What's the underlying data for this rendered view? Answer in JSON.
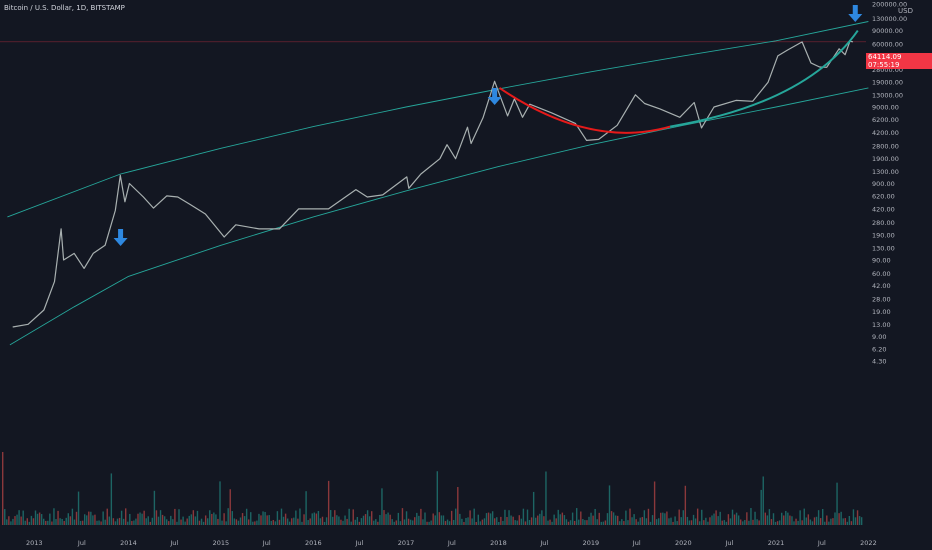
{
  "header": {
    "symbol_title": "Bitcoin / U.S. Dollar, 1D, BITSTAMP",
    "currency": "USD"
  },
  "last_price": {
    "value": "64114.09",
    "countdown": "07:55:19",
    "color": "#f23645"
  },
  "colors": {
    "background": "#131722",
    "channel_line": "#26a69a",
    "red_curve": "#e51a1a",
    "green_curve": "#26a69a",
    "arrows": "#2e88e0",
    "volume_up": "#26a69a",
    "volume_down": "#ef5350",
    "volume_ma": "#f0a050"
  },
  "chart_data": {
    "type": "line",
    "title": "Bitcoin / U.S. Dollar, 1D, BITSTAMP",
    "xlabel": "",
    "ylabel": "USD",
    "y_scale": "log",
    "ylim": [
      4.3,
      200000
    ],
    "y_tick_labels": [
      "200000.00",
      "130000.00",
      "90000.00",
      "60000.00",
      "42000.00",
      "28000.00",
      "19000.00",
      "13000.00",
      "9000.00",
      "6200.00",
      "4200.00",
      "2800.00",
      "1900.00",
      "1300.00",
      "900.00",
      "620.00",
      "420.00",
      "280.00",
      "190.00",
      "130.00",
      "90.00",
      "60.00",
      "42.00",
      "28.00",
      "19.00",
      "13.00",
      "9.00",
      "6.20",
      "4.30"
    ],
    "x_tick_labels": [
      "2013",
      "Jul",
      "2014",
      "Jul",
      "2015",
      "Jul",
      "2016",
      "Jul",
      "2017",
      "Jul",
      "2018",
      "Jul",
      "2019",
      "Jul",
      "2020",
      "Jul",
      "2021",
      "Jul",
      "2022"
    ],
    "series": [
      {
        "x": [
          "2012-10-01",
          "2012-12-01",
          "2013-02-01",
          "2013-03-15",
          "2013-04-10",
          "2013-04-20",
          "2013-06-01",
          "2013-07-10",
          "2013-08-15",
          "2013-10-01",
          "2013-11-10",
          "2013-11-30",
          "2013-12-18",
          "2014-01-05",
          "2014-03-01",
          "2014-04-10",
          "2014-06-01",
          "2014-07-15",
          "2014-09-01",
          "2014-11-01",
          "2015-01-14",
          "2015-03-01",
          "2015-06-01",
          "2015-08-20",
          "2015-11-04",
          "2016-01-01",
          "2016-03-01",
          "2016-06-17",
          "2016-08-01",
          "2016-10-01",
          "2017-01-04",
          "2017-01-12",
          "2017-03-01",
          "2017-05-15",
          "2017-06-12",
          "2017-07-16",
          "2017-09-01",
          "2017-09-15",
          "2017-11-01",
          "2017-12-17",
          "2018-02-06",
          "2018-03-05",
          "2018-04-06",
          "2018-05-05",
          "2018-08-01",
          "2018-11-01",
          "2018-12-15",
          "2019-02-01",
          "2019-04-15",
          "2019-06-26",
          "2019-08-01",
          "2019-10-01",
          "2019-12-18",
          "2020-02-13",
          "2020-03-13",
          "2020-05-01",
          "2020-07-27",
          "2020-10-01",
          "2020-12-01",
          "2021-01-08",
          "2021-02-15",
          "2021-04-14",
          "2021-05-19",
          "2021-06-22",
          "2021-07-20",
          "2021-09-07",
          "2021-10-01",
          "2021-10-20",
          "2021-11-01"
        ],
        "y": [
          12,
          13,
          20,
          47,
          230,
          90,
          110,
          70,
          110,
          140,
          400,
          1150,
          520,
          900,
          600,
          430,
          620,
          600,
          480,
          360,
          180,
          260,
          230,
          230,
          420,
          420,
          420,
          750,
          600,
          640,
          1100,
          780,
          1200,
          1900,
          2900,
          1900,
          4900,
          3000,
          6500,
          19500,
          6900,
          11500,
          6600,
          9800,
          7500,
          5500,
          3300,
          3400,
          5200,
          13000,
          10000,
          8500,
          6600,
          10300,
          4800,
          9000,
          11000,
          10700,
          19000,
          42000,
          50000,
          64000,
          34000,
          30000,
          29800,
          52000,
          43500,
          65000,
          64114
        ]
      }
    ],
    "annotations": [
      "down-arrow 2013-12-01",
      "down-arrow 2017-12-17",
      "down-arrow 2021-11-10",
      "red parabolic curve 2018-2020",
      "green parabolic curve 2020-2021",
      "log growth channel upper line",
      "log growth channel lower line"
    ]
  }
}
